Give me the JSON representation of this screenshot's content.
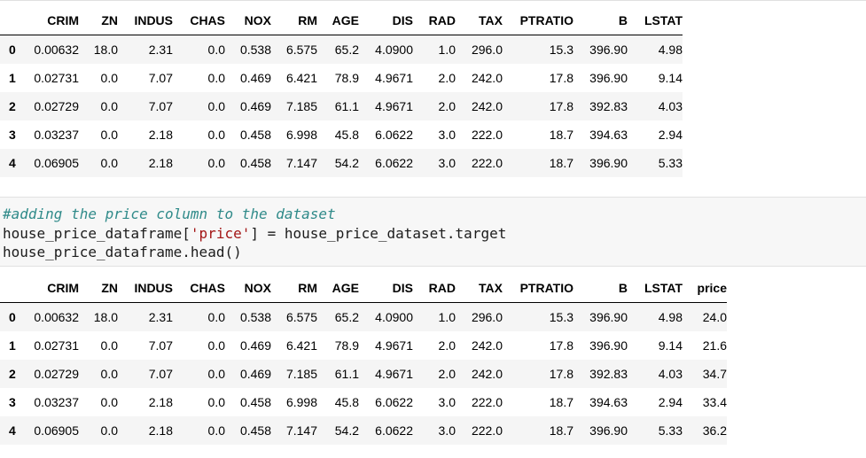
{
  "table1": {
    "columns": [
      "",
      "CRIM",
      "ZN",
      "INDUS",
      "CHAS",
      "NOX",
      "RM",
      "AGE",
      "DIS",
      "RAD",
      "TAX",
      "PTRATIO",
      "B",
      "LSTAT"
    ],
    "rows": [
      [
        "0",
        "0.00632",
        "18.0",
        "2.31",
        "0.0",
        "0.538",
        "6.575",
        "65.2",
        "4.0900",
        "1.0",
        "296.0",
        "15.3",
        "396.90",
        "4.98"
      ],
      [
        "1",
        "0.02731",
        "0.0",
        "7.07",
        "0.0",
        "0.469",
        "6.421",
        "78.9",
        "4.9671",
        "2.0",
        "242.0",
        "17.8",
        "396.90",
        "9.14"
      ],
      [
        "2",
        "0.02729",
        "0.0",
        "7.07",
        "0.0",
        "0.469",
        "7.185",
        "61.1",
        "4.9671",
        "2.0",
        "242.0",
        "17.8",
        "392.83",
        "4.03"
      ],
      [
        "3",
        "0.03237",
        "0.0",
        "2.18",
        "0.0",
        "0.458",
        "6.998",
        "45.8",
        "6.0622",
        "3.0",
        "222.0",
        "18.7",
        "394.63",
        "2.94"
      ],
      [
        "4",
        "0.06905",
        "0.0",
        "2.18",
        "0.0",
        "0.458",
        "7.147",
        "54.2",
        "6.0622",
        "3.0",
        "222.0",
        "18.7",
        "396.90",
        "5.33"
      ]
    ]
  },
  "code_cell": {
    "comment": "#adding the price column to the dataset",
    "line2_prefix": "house_price_dataframe[",
    "line2_string": "'price'",
    "line2_suffix": "] = house_price_dataset.target",
    "line3": "house_price_dataframe.head()"
  },
  "table2": {
    "columns": [
      "",
      "CRIM",
      "ZN",
      "INDUS",
      "CHAS",
      "NOX",
      "RM",
      "AGE",
      "DIS",
      "RAD",
      "TAX",
      "PTRATIO",
      "B",
      "LSTAT",
      "price"
    ],
    "rows": [
      [
        "0",
        "0.00632",
        "18.0",
        "2.31",
        "0.0",
        "0.538",
        "6.575",
        "65.2",
        "4.0900",
        "1.0",
        "296.0",
        "15.3",
        "396.90",
        "4.98",
        "24.0"
      ],
      [
        "1",
        "0.02731",
        "0.0",
        "7.07",
        "0.0",
        "0.469",
        "6.421",
        "78.9",
        "4.9671",
        "2.0",
        "242.0",
        "17.8",
        "396.90",
        "9.14",
        "21.6"
      ],
      [
        "2",
        "0.02729",
        "0.0",
        "7.07",
        "0.0",
        "0.469",
        "7.185",
        "61.1",
        "4.9671",
        "2.0",
        "242.0",
        "17.8",
        "392.83",
        "4.03",
        "34.7"
      ],
      [
        "3",
        "0.03237",
        "0.0",
        "2.18",
        "0.0",
        "0.458",
        "6.998",
        "45.8",
        "6.0622",
        "3.0",
        "222.0",
        "18.7",
        "394.63",
        "2.94",
        "33.4"
      ],
      [
        "4",
        "0.06905",
        "0.0",
        "2.18",
        "0.0",
        "0.458",
        "7.147",
        "54.2",
        "6.0622",
        "3.0",
        "222.0",
        "18.7",
        "396.90",
        "5.33",
        "36.2"
      ]
    ]
  },
  "colors": {
    "comment": "#2f8a89",
    "string": "#a31515",
    "row_stripe": "#f5f5f5",
    "code_background": "#f7f7f7"
  }
}
